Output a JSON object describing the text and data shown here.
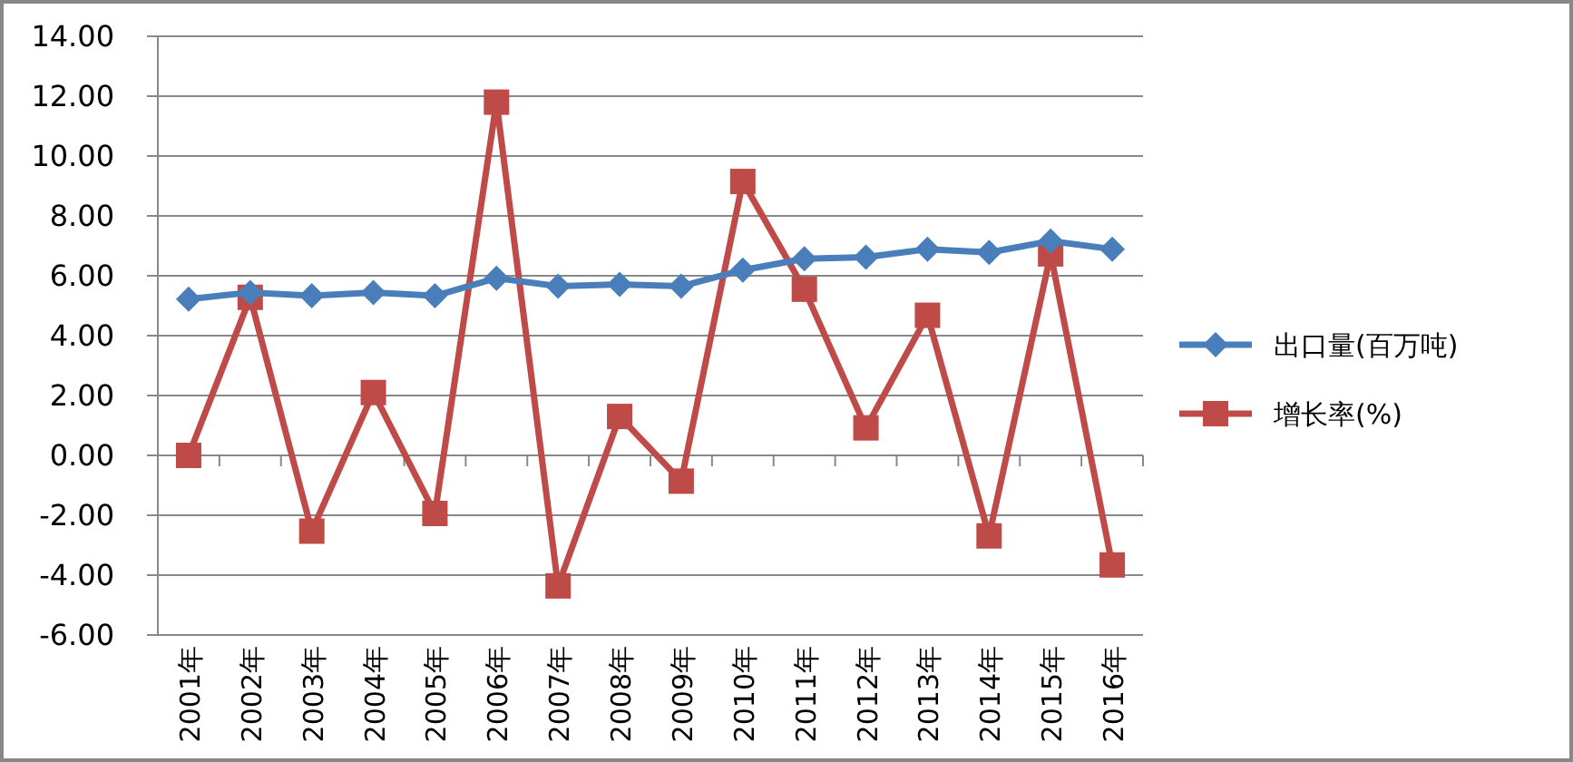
{
  "chart_data": {
    "type": "line",
    "categories": [
      "2001年",
      "2002年",
      "2003年",
      "2004年",
      "2005年",
      "2006年",
      "2007年",
      "2008年",
      "2009年",
      "2010年",
      "2011年",
      "2012年",
      "2013年",
      "2014年",
      "2015年",
      "2016年"
    ],
    "series": [
      {
        "name": "出口量(百万吨)",
        "color": "#4a7ebb",
        "marker": "diamond",
        "values": [
          5.22,
          5.44,
          5.33,
          5.44,
          5.33,
          5.92,
          5.65,
          5.71,
          5.65,
          6.19,
          6.57,
          6.62,
          6.89,
          6.78,
          7.16,
          6.89
        ]
      },
      {
        "name": "增长率(%)",
        "color": "#be4b48",
        "marker": "square",
        "values": [
          0,
          5.28,
          -2.53,
          2.1,
          -1.94,
          11.8,
          -4.36,
          1.3,
          -0.86,
          9.15,
          5.55,
          0.92,
          4.68,
          -2.69,
          6.73,
          -3.66
        ]
      }
    ],
    "ylim": [
      -6,
      14
    ],
    "yticks": [
      {
        "value": -6,
        "label": "-6.00"
      },
      {
        "value": -4,
        "label": "-4.00"
      },
      {
        "value": -2,
        "label": "-2.00"
      },
      {
        "value": 0,
        "label": "0.00"
      },
      {
        "value": 2,
        "label": "2.00"
      },
      {
        "value": 4,
        "label": "4.00"
      },
      {
        "value": 6,
        "label": "6.00"
      },
      {
        "value": 8,
        "label": "8.00"
      },
      {
        "value": 10,
        "label": "10.00"
      },
      {
        "value": 12,
        "label": "12.00"
      },
      {
        "value": 14,
        "label": "14.00"
      }
    ],
    "grid": "y",
    "legend": "right"
  }
}
